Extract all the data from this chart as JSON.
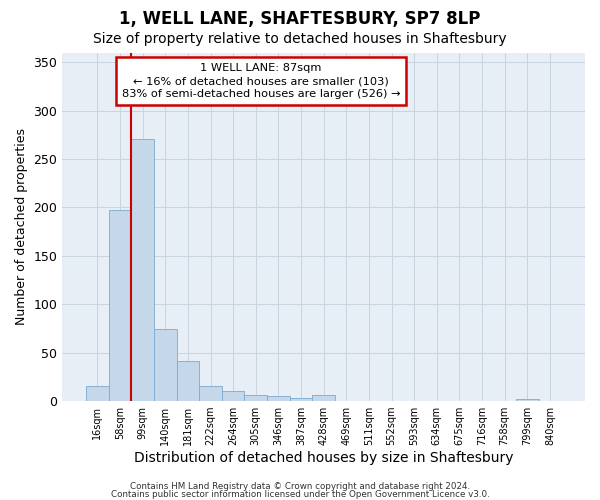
{
  "title": "1, WELL LANE, SHAFTESBURY, SP7 8LP",
  "subtitle": "Size of property relative to detached houses in Shaftesbury",
  "xlabel": "Distribution of detached houses by size in Shaftesbury",
  "ylabel": "Number of detached properties",
  "bar_labels": [
    "16sqm",
    "58sqm",
    "99sqm",
    "140sqm",
    "181sqm",
    "222sqm",
    "264sqm",
    "305sqm",
    "346sqm",
    "387sqm",
    "428sqm",
    "469sqm",
    "511sqm",
    "552sqm",
    "593sqm",
    "634sqm",
    "675sqm",
    "716sqm",
    "758sqm",
    "799sqm",
    "840sqm"
  ],
  "bar_values": [
    16,
    197,
    271,
    74,
    41,
    16,
    10,
    6,
    5,
    3,
    6,
    0,
    0,
    0,
    0,
    0,
    0,
    0,
    0,
    2,
    0
  ],
  "bar_color": "#c5d8ea",
  "bar_edge_color": "#7baacf",
  "grid_color": "#c8d4e0",
  "bg_color": "#e8eef5",
  "fig_bg_color": "#ffffff",
  "red_line_x": 1.5,
  "annotation_text": "1 WELL LANE: 87sqm\n← 16% of detached houses are smaller (103)\n83% of semi-detached houses are larger (526) →",
  "annotation_box_color": "#ffffff",
  "annotation_box_edge": "#cc0000",
  "ylim": [
    0,
    360
  ],
  "yticks": [
    0,
    50,
    100,
    150,
    200,
    250,
    300,
    350
  ],
  "title_fontsize": 12,
  "subtitle_fontsize": 10,
  "xlabel_fontsize": 10,
  "ylabel_fontsize": 9,
  "footer_line1": "Contains HM Land Registry data © Crown copyright and database right 2024.",
  "footer_line2": "Contains public sector information licensed under the Open Government Licence v3.0."
}
